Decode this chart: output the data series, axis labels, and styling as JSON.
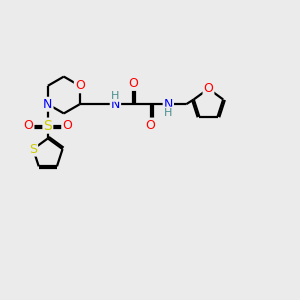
{
  "bg_color": "#ebebeb",
  "bond_color": "#000000",
  "bond_width": 1.6,
  "atom_colors": {
    "O": "#ff0000",
    "N": "#0000ff",
    "S_sulfonyl": "#cccc00",
    "S_thio": "#cccc00",
    "H": "#4a9090",
    "C": "#000000"
  },
  "font_size": 9,
  "fig_size": [
    3.0,
    3.0
  ],
  "dpi": 100
}
